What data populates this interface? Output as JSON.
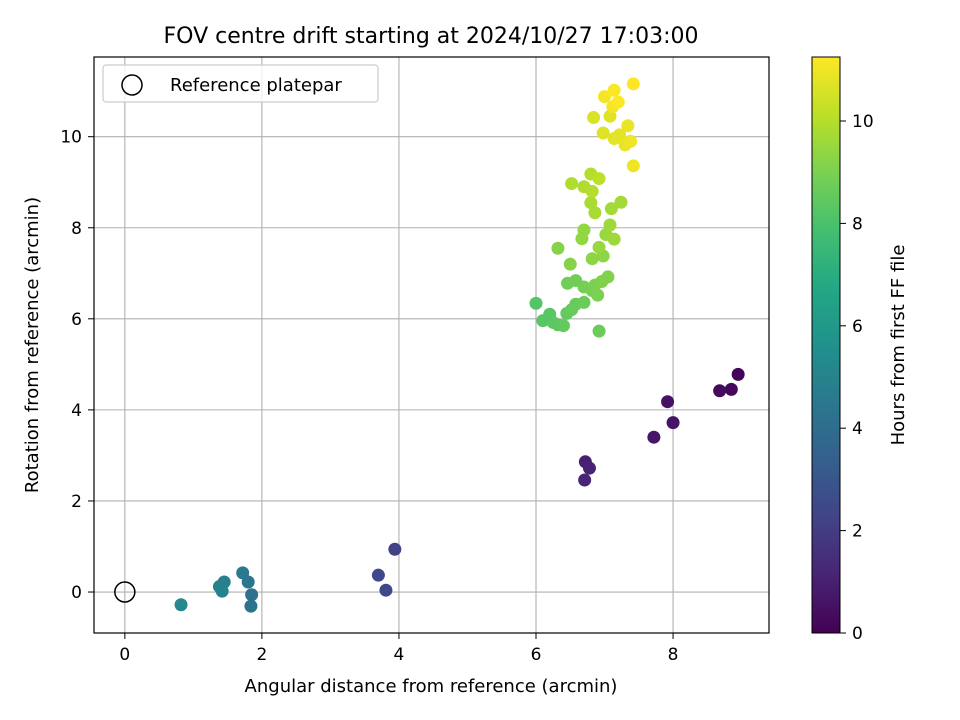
{
  "chart_data": {
    "type": "scatter",
    "title": "FOV centre drift starting at 2024/10/27 17:03:00",
    "xlabel": "Angular distance from reference (arcmin)",
    "ylabel": "Rotation from reference (arcmin)",
    "xlim": [
      -0.45,
      9.4
    ],
    "ylim": [
      -0.9,
      11.75
    ],
    "xticks": [
      "0",
      "2",
      "4",
      "6",
      "8"
    ],
    "yticks": [
      "0",
      "2",
      "4",
      "6",
      "8",
      "10"
    ],
    "grid": true,
    "legend": {
      "placement": "top-left",
      "entries": [
        {
          "label": "Reference platepar",
          "marker": "open-circle"
        }
      ]
    },
    "reference_point": {
      "x": 0,
      "y": 0
    },
    "colorbar": {
      "label": "Hours from first FF file",
      "range": [
        0,
        11.25
      ],
      "ticks": [
        "0",
        "2",
        "4",
        "6",
        "8",
        "10"
      ],
      "colormap": "viridis"
    },
    "series": [
      {
        "points": [
          {
            "x": 8.95,
            "y": 4.78,
            "c": 0.1
          },
          {
            "x": 8.85,
            "y": 4.45,
            "c": 0.2
          },
          {
            "x": 8.68,
            "y": 4.42,
            "c": 0.3
          },
          {
            "x": 7.92,
            "y": 4.18,
            "c": 0.5
          },
          {
            "x": 8.0,
            "y": 3.72,
            "c": 0.6
          },
          {
            "x": 7.72,
            "y": 3.4,
            "c": 0.7
          },
          {
            "x": 6.72,
            "y": 2.86,
            "c": 1.0
          },
          {
            "x": 6.78,
            "y": 2.72,
            "c": 1.1
          },
          {
            "x": 6.71,
            "y": 2.46,
            "c": 1.2
          },
          {
            "x": 3.94,
            "y": 0.94,
            "c": 2.2
          },
          {
            "x": 3.7,
            "y": 0.37,
            "c": 2.4
          },
          {
            "x": 3.81,
            "y": 0.04,
            "c": 2.5
          },
          {
            "x": 1.85,
            "y": -0.06,
            "c": 4.2
          },
          {
            "x": 1.84,
            "y": -0.31,
            "c": 4.3
          },
          {
            "x": 1.8,
            "y": 0.22,
            "c": 4.4
          },
          {
            "x": 1.72,
            "y": 0.42,
            "c": 4.6
          },
          {
            "x": 1.45,
            "y": 0.22,
            "c": 4.8
          },
          {
            "x": 1.38,
            "y": 0.12,
            "c": 4.9
          },
          {
            "x": 1.42,
            "y": 0.02,
            "c": 5.0
          },
          {
            "x": 0.82,
            "y": -0.28,
            "c": 5.2
          },
          {
            "x": 6.0,
            "y": 6.34,
            "c": 8.2
          },
          {
            "x": 6.1,
            "y": 5.96,
            "c": 8.3
          },
          {
            "x": 6.2,
            "y": 6.1,
            "c": 8.3
          },
          {
            "x": 6.25,
            "y": 5.92,
            "c": 8.4
          },
          {
            "x": 6.32,
            "y": 5.87,
            "c": 8.4
          },
          {
            "x": 6.4,
            "y": 5.85,
            "c": 8.5
          },
          {
            "x": 6.45,
            "y": 6.12,
            "c": 8.5
          },
          {
            "x": 6.52,
            "y": 6.2,
            "c": 8.6
          },
          {
            "x": 6.58,
            "y": 6.32,
            "c": 8.6
          },
          {
            "x": 6.7,
            "y": 6.36,
            "c": 8.7
          },
          {
            "x": 6.92,
            "y": 5.73,
            "c": 8.7
          },
          {
            "x": 6.58,
            "y": 6.84,
            "c": 8.8
          },
          {
            "x": 6.46,
            "y": 6.78,
            "c": 8.8
          },
          {
            "x": 6.7,
            "y": 6.7,
            "c": 8.9
          },
          {
            "x": 6.82,
            "y": 6.62,
            "c": 8.9
          },
          {
            "x": 6.9,
            "y": 6.52,
            "c": 9.0
          },
          {
            "x": 6.86,
            "y": 6.74,
            "c": 9.0
          },
          {
            "x": 6.96,
            "y": 6.82,
            "c": 9.1
          },
          {
            "x": 7.05,
            "y": 6.92,
            "c": 9.1
          },
          {
            "x": 6.5,
            "y": 7.2,
            "c": 9.2
          },
          {
            "x": 6.32,
            "y": 7.55,
            "c": 9.2
          },
          {
            "x": 6.82,
            "y": 7.32,
            "c": 9.3
          },
          {
            "x": 6.98,
            "y": 7.38,
            "c": 9.3
          },
          {
            "x": 6.67,
            "y": 7.76,
            "c": 9.4
          },
          {
            "x": 6.7,
            "y": 7.95,
            "c": 9.4
          },
          {
            "x": 6.92,
            "y": 7.57,
            "c": 9.5
          },
          {
            "x": 7.02,
            "y": 7.85,
            "c": 9.5
          },
          {
            "x": 7.08,
            "y": 8.06,
            "c": 9.6
          },
          {
            "x": 7.14,
            "y": 7.75,
            "c": 9.6
          },
          {
            "x": 7.1,
            "y": 8.42,
            "c": 9.7
          },
          {
            "x": 7.24,
            "y": 8.56,
            "c": 9.7
          },
          {
            "x": 6.86,
            "y": 8.33,
            "c": 9.8
          },
          {
            "x": 6.8,
            "y": 8.55,
            "c": 9.8
          },
          {
            "x": 6.52,
            "y": 8.97,
            "c": 9.9
          },
          {
            "x": 6.7,
            "y": 8.9,
            "c": 9.9
          },
          {
            "x": 6.82,
            "y": 8.8,
            "c": 10.0
          },
          {
            "x": 6.8,
            "y": 9.18,
            "c": 10.0
          },
          {
            "x": 6.92,
            "y": 9.08,
            "c": 10.1
          },
          {
            "x": 6.84,
            "y": 10.42,
            "c": 10.6
          },
          {
            "x": 6.98,
            "y": 10.08,
            "c": 10.7
          },
          {
            "x": 7.08,
            "y": 10.45,
            "c": 10.7
          },
          {
            "x": 7.14,
            "y": 9.96,
            "c": 10.8
          },
          {
            "x": 7.22,
            "y": 10.04,
            "c": 10.8
          },
          {
            "x": 7.3,
            "y": 9.82,
            "c": 10.9
          },
          {
            "x": 7.34,
            "y": 10.24,
            "c": 10.9
          },
          {
            "x": 7.38,
            "y": 9.9,
            "c": 11.0
          },
          {
            "x": 7.42,
            "y": 9.36,
            "c": 11.0
          },
          {
            "x": 7.0,
            "y": 10.88,
            "c": 11.1
          },
          {
            "x": 7.12,
            "y": 10.66,
            "c": 11.1
          },
          {
            "x": 7.2,
            "y": 10.76,
            "c": 11.2
          },
          {
            "x": 7.14,
            "y": 11.02,
            "c": 11.2
          },
          {
            "x": 7.42,
            "y": 11.16,
            "c": 11.25
          }
        ]
      }
    ]
  }
}
